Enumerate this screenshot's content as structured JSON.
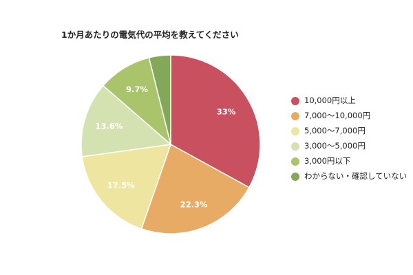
{
  "chart_data": {
    "type": "pie",
    "title": "1か月あたりの電気代の平均を教えてください",
    "categories": [
      "10,000円以上",
      "7,000〜10,000円",
      "5,000〜7,000円",
      "3,000〜5,000円",
      "3,000円以下",
      "わからない・確認していない"
    ],
    "values": [
      33,
      22.3,
      17.5,
      13.6,
      9.7,
      3.9
    ],
    "data_labels": [
      "33%",
      "22.3%",
      "17.5%",
      "13.6%",
      "9.7%",
      ""
    ],
    "colors": [
      "#c9515f",
      "#e8ab66",
      "#ede5a0",
      "#d4e1b0",
      "#a9c46a",
      "#84a85a"
    ],
    "legend_position": "right",
    "start_angle": "top, clockwise"
  }
}
